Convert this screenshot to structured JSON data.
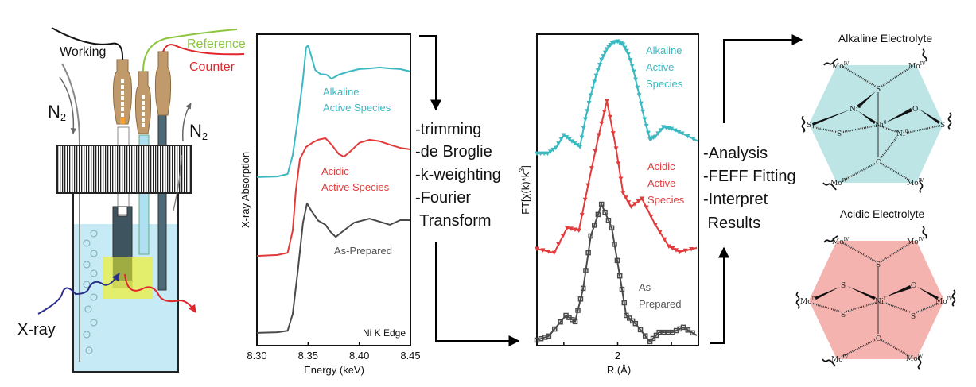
{
  "cell": {
    "working": "Working",
    "reference": "Reference",
    "counter": "Counter",
    "n2_main": "N",
    "n2_sub": "2",
    "xray": "X-ray",
    "colors": {
      "reference": "#8cc63f",
      "counter": "#e0262b",
      "electrolyte": "#c6ebf7",
      "sample": "#e9ee55",
      "xray_in": "#2b2f8a",
      "xray_out": "#e0262b"
    }
  },
  "processing_steps": [
    "-trimming",
    "-de Broglie",
    "-k-weighting",
    "-Fourier",
    " Transform"
  ],
  "analysis_steps": [
    "-Analysis",
    "-FEFF Fitting",
    "-Interpret",
    " Results"
  ],
  "structures": {
    "alkaline": {
      "title": "Alkaline Electrolyte",
      "color": "#bde5e6"
    },
    "acidic": {
      "title": "Acidic Electrolyte",
      "color": "#f5b3b0"
    },
    "labels": {
      "mo": "Mo",
      "iv": "IV",
      "s": "S",
      "o": "O",
      "ni": "Ni",
      "zero": "0",
      "one": "I"
    }
  },
  "chart_data": [
    {
      "type": "line",
      "xlabel": "Energy (keV)",
      "ylabel": "X-ray Absorption",
      "xlim": [
        8.3,
        8.45
      ],
      "xticks": [
        "8.30",
        "8.35",
        "8.40",
        "8.45"
      ],
      "annotation": "Ni K Edge",
      "grid": false,
      "series": [
        {
          "name": "Alkaline Active Species",
          "label_lines": [
            "Alkaline",
            "Active Species"
          ],
          "color": "#3bb9c1",
          "x": [
            8.3,
            8.32,
            8.33,
            8.335,
            8.34,
            8.345,
            8.348,
            8.35,
            8.353,
            8.357,
            8.362,
            8.368,
            8.373,
            8.38,
            8.39,
            8.4,
            8.41,
            8.42,
            8.43,
            8.44,
            8.45
          ],
          "y": [
            0.541,
            0.543,
            0.551,
            0.612,
            0.727,
            0.855,
            0.957,
            0.964,
            0.931,
            0.885,
            0.872,
            0.87,
            0.857,
            0.87,
            0.88,
            0.888,
            0.89,
            0.893,
            0.89,
            0.888,
            0.88
          ]
        },
        {
          "name": "Acidic Active Species",
          "label_lines": [
            "Acidic",
            "Active Species"
          ],
          "color": "#e23b3b",
          "x": [
            8.3,
            8.32,
            8.33,
            8.335,
            8.338,
            8.342,
            8.348,
            8.355,
            8.36,
            8.367,
            8.373,
            8.38,
            8.385,
            8.39,
            8.4,
            8.41,
            8.42,
            8.43,
            8.44,
            8.45
          ],
          "y": [
            0.288,
            0.291,
            0.298,
            0.37,
            0.497,
            0.599,
            0.638,
            0.653,
            0.661,
            0.666,
            0.645,
            0.615,
            0.607,
            0.62,
            0.651,
            0.661,
            0.656,
            0.645,
            0.635,
            0.63
          ]
        },
        {
          "name": "As-Prepared",
          "label_lines": [
            "As-Prepared"
          ],
          "color": "#4a4a4a",
          "x": [
            8.3,
            8.32,
            8.33,
            8.335,
            8.34,
            8.345,
            8.349,
            8.353,
            8.36,
            8.367,
            8.372,
            8.377,
            8.385,
            8.395,
            8.41,
            8.42,
            8.43,
            8.44,
            8.45
          ],
          "y": [
            0.041,
            0.043,
            0.048,
            0.102,
            0.242,
            0.395,
            0.457,
            0.434,
            0.401,
            0.388,
            0.365,
            0.349,
            0.37,
            0.395,
            0.408,
            0.398,
            0.388,
            0.403,
            0.403
          ]
        }
      ]
    },
    {
      "type": "line",
      "xlabel": "R (Å)",
      "ylabel": "FT[χ(k)*k³]",
      "ylabel_main": "FT[χ(k)*k",
      "ylabel_sup": "3",
      "ylabel_end": "]",
      "xlim": [
        0.5,
        3.5
      ],
      "xticks": [
        "2"
      ],
      "grid": false,
      "series": [
        {
          "name": "Alkaline Active Species",
          "label_lines": [
            "Alkaline",
            "Active",
            "Species"
          ],
          "color": "#3bb9c1",
          "marker": "triangle-down",
          "x": [
            0.5,
            0.7,
            0.85,
            1.0,
            1.15,
            1.3,
            1.4,
            1.5,
            1.6,
            1.7,
            1.8,
            1.9,
            2.0,
            2.1,
            2.2,
            2.3,
            2.4,
            2.5,
            2.6,
            2.7,
            2.85,
            3.0,
            3.2,
            3.5
          ],
          "y": [
            0.617,
            0.617,
            0.635,
            0.676,
            0.656,
            0.638,
            0.727,
            0.804,
            0.867,
            0.918,
            0.952,
            0.972,
            0.977,
            0.967,
            0.936,
            0.88,
            0.804,
            0.727,
            0.663,
            0.671,
            0.702,
            0.696,
            0.681,
            0.656
          ]
        },
        {
          "name": "Acidic Active Species",
          "label_lines": [
            "Acidic",
            "Active",
            "Species"
          ],
          "color": "#e23b3b",
          "marker": "triangle-down",
          "x": [
            0.5,
            0.82,
            1.06,
            1.28,
            1.45,
            1.65,
            1.8,
            1.97,
            2.1,
            2.25,
            2.45,
            2.7,
            2.95,
            3.15,
            3.47
          ],
          "y": [
            0.311,
            0.298,
            0.378,
            0.37,
            0.515,
            0.676,
            0.786,
            0.633,
            0.49,
            0.446,
            0.472,
            0.388,
            0.319,
            0.301,
            0.314
          ]
        },
        {
          "name": "As-Prepared",
          "label_lines": [
            "As-",
            "Prepared"
          ],
          "color": "#4a4a4a",
          "marker": "square",
          "x": [
            0.5,
            0.72,
            1.04,
            1.21,
            1.36,
            1.5,
            1.7,
            1.89,
            2.04,
            2.16,
            2.33,
            2.6,
            2.77,
            3.02,
            3.22,
            3.47
          ],
          "y": [
            0.018,
            0.031,
            0.097,
            0.077,
            0.184,
            0.352,
            0.454,
            0.378,
            0.224,
            0.097,
            0.071,
            0.013,
            0.043,
            0.043,
            0.059,
            0.033
          ]
        }
      ]
    }
  ]
}
